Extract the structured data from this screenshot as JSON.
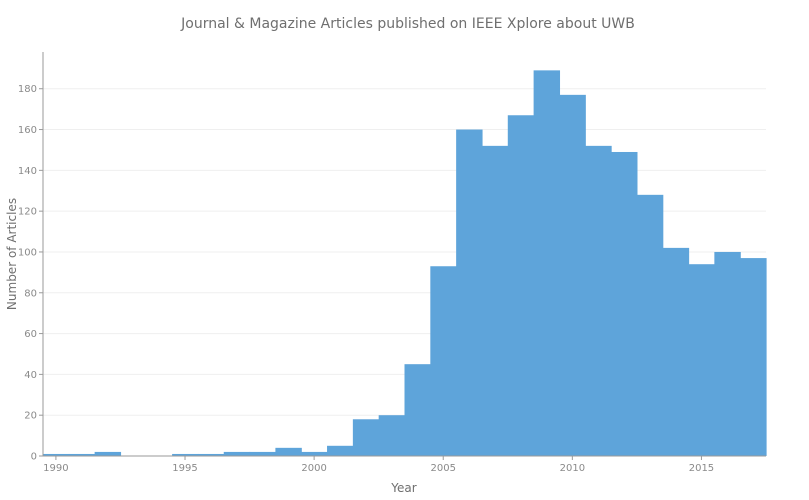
{
  "chart_data": {
    "type": "bar",
    "title": "Journal & Magazine Articles published on IEEE Xplore about UWB",
    "xlabel": "Year",
    "ylabel": "Number of Articles",
    "xlim": [
      1989.5,
      2017.5
    ],
    "ylim": [
      0,
      198
    ],
    "xticks": [
      1990,
      1995,
      2000,
      2005,
      2010,
      2015
    ],
    "yticks": [
      0,
      20,
      40,
      60,
      80,
      100,
      120,
      140,
      160,
      180
    ],
    "grid": true,
    "bar_color": "#5ea4da",
    "x": [
      1989,
      1990,
      1991,
      1992,
      1993,
      1994,
      1995,
      1996,
      1997,
      1998,
      1999,
      2000,
      2001,
      2002,
      2003,
      2004,
      2005,
      2006,
      2007,
      2008,
      2009,
      2010,
      2011,
      2012,
      2013,
      2014,
      2015,
      2016,
      2017
    ],
    "values": [
      1,
      1,
      1,
      2,
      0,
      0,
      1,
      1,
      2,
      2,
      4,
      2,
      5,
      18,
      20,
      45,
      93,
      160,
      152,
      167,
      189,
      177,
      152,
      149,
      128,
      102,
      94,
      100,
      97
    ]
  }
}
